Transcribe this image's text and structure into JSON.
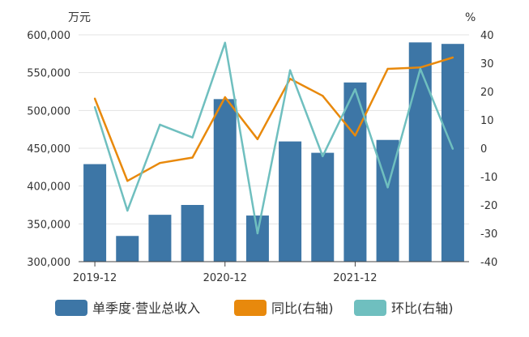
{
  "chart_data": {
    "type": "bar",
    "left_unit": "万元",
    "right_unit": "%",
    "x_tick_labels": [
      "2019-12",
      "2020-12",
      "2021-12"
    ],
    "x_tick_indices": [
      0,
      4,
      8
    ],
    "left_axis": {
      "min": 300000,
      "max": 600000,
      "step": 50000,
      "tick_labels": [
        "300,000",
        "350,000",
        "400,000",
        "450,000",
        "500,000",
        "550,000",
        "600,000"
      ]
    },
    "right_axis": {
      "min": -40,
      "max": 40,
      "step": 10,
      "tick_labels": [
        "-40",
        "-30",
        "-20",
        "-10",
        "0",
        "10",
        "20",
        "30",
        "40"
      ]
    },
    "grid": true,
    "legend_position": "bottom-center",
    "series": [
      {
        "name": "单季度·营业总收入",
        "kind": "bar",
        "axis": "left",
        "color": "#3d76a6",
        "values": [
          429000,
          334000,
          362000,
          375000,
          515000,
          361000,
          459000,
          444000,
          537000,
          461000,
          590000,
          588000
        ]
      },
      {
        "name": "同比(右轴)",
        "kind": "line",
        "axis": "right",
        "color": "#e8890c",
        "values": [
          17.5,
          -11.5,
          -5.2,
          -3.3,
          18.0,
          3.2,
          24.5,
          18.5,
          4.5,
          28.0,
          28.5,
          32.0
        ]
      },
      {
        "name": "环比(右轴)",
        "kind": "line",
        "axis": "right",
        "color": "#6fbfbf",
        "values": [
          14.5,
          -22.0,
          8.3,
          3.8,
          37.2,
          -30.0,
          27.5,
          -2.8,
          20.8,
          -13.8,
          28.0,
          -0.2
        ]
      }
    ]
  }
}
